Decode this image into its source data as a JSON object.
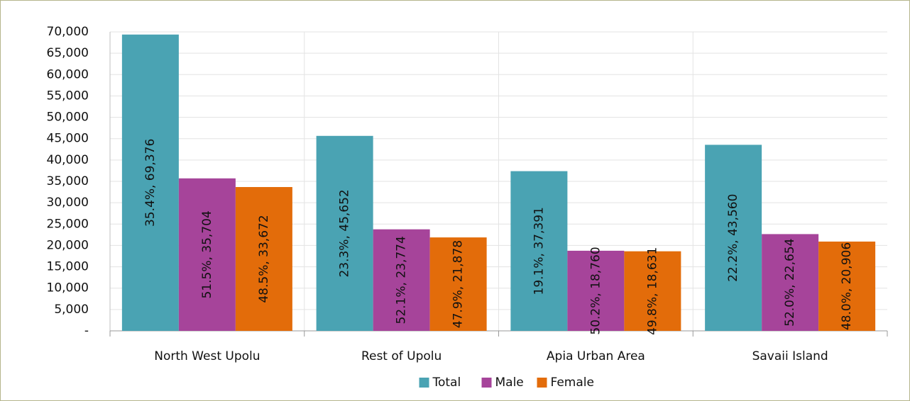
{
  "chart_data": {
    "type": "bar",
    "categories": [
      "North West Upolu",
      "Rest of Upolu",
      "Apia Urban Area",
      "Savaii Island"
    ],
    "series": [
      {
        "name": "Total",
        "color": "#4aa3b3",
        "values": [
          69376,
          45652,
          37391,
          43560
        ],
        "value_labels": [
          "35.4%, 69,376",
          "23.3%, 45,652",
          "19.1%, 37,391",
          "22.2%, 43,560"
        ]
      },
      {
        "name": "Male",
        "color": "#a6449a",
        "values": [
          35704,
          23774,
          18760,
          22654
        ],
        "value_labels": [
          "51.5%, 35,704",
          "52.1%, 23,774",
          "50.2%, 18,760",
          "52.0%, 22,654"
        ]
      },
      {
        "name": "Female",
        "color": "#e36c0a",
        "values": [
          33672,
          21878,
          18631,
          20906
        ],
        "value_labels": [
          "48.5%, 33,672",
          "47.9%, 21,878",
          "49.8%, 18,631",
          "48.0%, 20,906"
        ]
      }
    ],
    "ylim": [
      0,
      70000
    ],
    "yticks": [
      {
        "value": 0,
        "label": "-"
      },
      {
        "value": 5000,
        "label": "5,000"
      },
      {
        "value": 10000,
        "label": "10,000"
      },
      {
        "value": 15000,
        "label": "15,000"
      },
      {
        "value": 20000,
        "label": "20,000"
      },
      {
        "value": 25000,
        "label": "25,000"
      },
      {
        "value": 30000,
        "label": "30,000"
      },
      {
        "value": 35000,
        "label": "35,000"
      },
      {
        "value": 40000,
        "label": "40,000"
      },
      {
        "value": 45000,
        "label": "45,000"
      },
      {
        "value": 50000,
        "label": "50,000"
      },
      {
        "value": 55000,
        "label": "55,000"
      },
      {
        "value": 60000,
        "label": "60,000"
      },
      {
        "value": 65000,
        "label": "65,000"
      },
      {
        "value": 70000,
        "label": "70,000"
      }
    ],
    "grid": true,
    "legend": "bottom"
  }
}
